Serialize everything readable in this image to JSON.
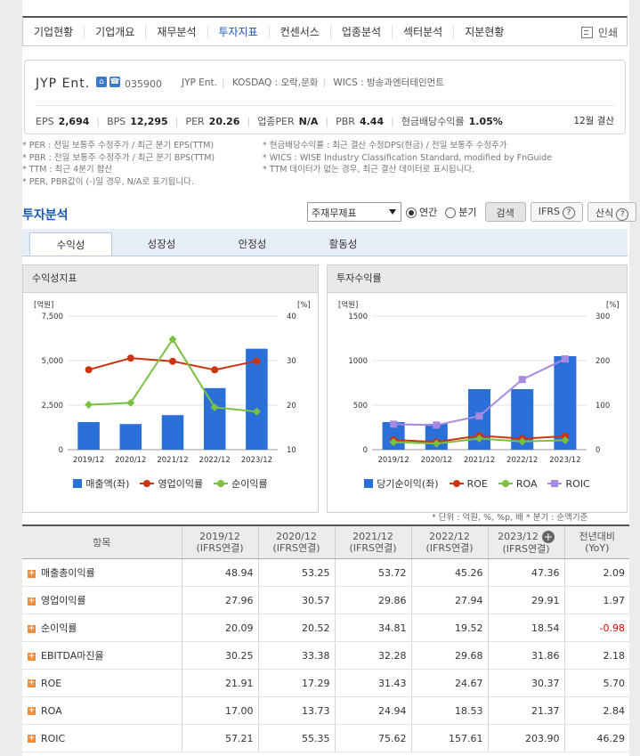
{
  "nav": {
    "items": [
      "기업현황",
      "기업개요",
      "재무분석",
      "투자지표",
      "컨센서스",
      "업종분석",
      "섹터분석",
      "지분현황"
    ],
    "active_index": 3,
    "print_label": "인쇄"
  },
  "company": {
    "name": "JYP Ent.",
    "code": "035900",
    "meta": [
      "JYP Ent.",
      "KOSDAQ : 오락,문화",
      "WICS : 방송과엔터테인먼트"
    ],
    "metrics": [
      {
        "label": "EPS",
        "value": "2,694"
      },
      {
        "label": "BPS",
        "value": "12,295"
      },
      {
        "label": "PER",
        "value": "20.26"
      },
      {
        "label": "업종PER",
        "value": "N/A"
      },
      {
        "label": "PBR",
        "value": "4.44"
      },
      {
        "label": "현금배당수익률",
        "value": "1.05%"
      }
    ],
    "settlement": "12월 결산"
  },
  "notes": {
    "left": [
      "* PER : 전일 보통주 수정주가 / 최근 분기 EPS(TTM)",
      "* PBR : 전일 보통주 수정주가 / 최근 분기 BPS(TTM)",
      "* TTM : 최근 4분기 합산",
      "* PER, PBR값이 (-)일 경우, N/A로 표기됩니다."
    ],
    "right": [
      "* 현금배당수익률 : 최근 결산 수정DPS(현금) / 전일 보통주 수정주가",
      "* WICS : WISE Industry Classification Standard, modified by FnGuide",
      "* TTM 데이터가 없는 경우, 최근 결산 데이터로 표시됩니다."
    ]
  },
  "section": {
    "title": "투자분석",
    "select_value": "주재무제표",
    "radio_annual": "연간",
    "radio_quarter": "분기",
    "search_button": "검색",
    "ifrs_button": "IFRS",
    "calc_button": "산식"
  },
  "tabs": [
    "수익성",
    "성장성",
    "안정성",
    "활동성"
  ],
  "panels": {
    "left_title": "수익성지표",
    "right_title": "투자수익률"
  },
  "chart_data": [
    {
      "type": "bar",
      "title": "수익성지표",
      "categories": [
        "2019/12",
        "2020/12",
        "2021/12",
        "2022/12",
        "2023/12"
      ],
      "left_axis": {
        "unit": "[억원]",
        "ticks": [
          "0",
          "2,500",
          "5,000",
          "7,500"
        ],
        "ylim": [
          0,
          7500
        ]
      },
      "right_axis": {
        "unit": "[%]",
        "ticks": [
          "10",
          "20",
          "30",
          "40"
        ],
        "ylim": [
          10,
          40
        ]
      },
      "series": [
        {
          "name": "매출액(좌)",
          "type": "bar",
          "axis": "left",
          "color": "#2b6fd9",
          "values": [
            1550,
            1440,
            1940,
            3460,
            5670
          ]
        },
        {
          "name": "영업이익률",
          "type": "line",
          "axis": "right",
          "color": "#cc3311",
          "values": [
            27.96,
            30.57,
            29.86,
            27.94,
            29.91
          ]
        },
        {
          "name": "순이익률",
          "type": "line",
          "axis": "right",
          "color": "#7ac142",
          "values": [
            20.09,
            20.52,
            34.81,
            19.52,
            18.54
          ]
        }
      ]
    },
    {
      "type": "bar",
      "title": "투자수익률",
      "categories": [
        "2019/12",
        "2020/12",
        "2021/12",
        "2022/12",
        "2023/12"
      ],
      "left_axis": {
        "unit": "[억원]",
        "ticks": [
          "0",
          "500",
          "1000",
          "1500"
        ],
        "ylim": [
          0,
          1500
        ]
      },
      "right_axis": {
        "unit": "[%]",
        "ticks": [
          "0",
          "100",
          "200",
          "300"
        ],
        "ylim": [
          0,
          300
        ]
      },
      "series": [
        {
          "name": "당기순이익(좌)",
          "type": "bar",
          "axis": "left",
          "color": "#2b6fd9",
          "values": [
            310,
            290,
            680,
            680,
            1050
          ]
        },
        {
          "name": "ROE",
          "type": "line",
          "axis": "right",
          "color": "#cc3311",
          "values": [
            21.91,
            17.29,
            31.43,
            24.67,
            30.37
          ]
        },
        {
          "name": "ROA",
          "type": "line",
          "axis": "right",
          "color": "#7ac142",
          "values": [
            17.0,
            13.73,
            24.94,
            18.53,
            21.37
          ]
        },
        {
          "name": "ROIC",
          "type": "line",
          "axis": "right",
          "color": "#a78be0",
          "values": [
            57.21,
            55.35,
            75.62,
            157.61,
            203.9
          ]
        }
      ]
    }
  ],
  "unit_note": "* 단위 : 억원, %, %p, 배     * 분기 : 순액기준",
  "table": {
    "header_item": "항목",
    "columns": [
      {
        "year": "2019/12",
        "basis": "(IFRS연결)"
      },
      {
        "year": "2020/12",
        "basis": "(IFRS연결)"
      },
      {
        "year": "2021/12",
        "basis": "(IFRS연결)"
      },
      {
        "year": "2022/12",
        "basis": "(IFRS연결)"
      },
      {
        "year": "2023/12",
        "basis": "(IFRS연결)"
      },
      {
        "year": "전년대비",
        "basis": "(YoY)"
      }
    ],
    "rows": [
      {
        "label": "매출총이익률",
        "values": [
          "48.94",
          "53.25",
          "53.72",
          "45.26",
          "47.36",
          "2.09"
        ]
      },
      {
        "label": "영업이익률",
        "values": [
          "27.96",
          "30.57",
          "29.86",
          "27.94",
          "29.91",
          "1.97"
        ]
      },
      {
        "label": "순이익률",
        "values": [
          "20.09",
          "20.52",
          "34.81",
          "19.52",
          "18.54",
          "-0.98"
        ]
      },
      {
        "label": "EBITDA마진율",
        "values": [
          "30.25",
          "33.38",
          "32.28",
          "29.68",
          "31.86",
          "2.18"
        ]
      },
      {
        "label": "ROE",
        "values": [
          "21.91",
          "17.29",
          "31.43",
          "24.67",
          "30.37",
          "5.70"
        ]
      },
      {
        "label": "ROA",
        "values": [
          "17.00",
          "13.73",
          "24.94",
          "18.53",
          "21.37",
          "2.84"
        ]
      },
      {
        "label": "ROIC",
        "values": [
          "57.21",
          "55.35",
          "75.62",
          "157.61",
          "203.90",
          "46.29"
        ]
      }
    ]
  }
}
